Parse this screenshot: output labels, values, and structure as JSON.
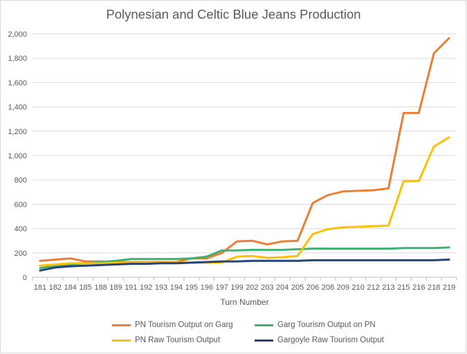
{
  "chart_data": {
    "type": "line",
    "title": "Polynesian and Celtic Blue Jeans Production",
    "xlabel": "Turn Number",
    "ylabel": "",
    "ylim": [
      0,
      2000
    ],
    "yticks": [
      0,
      200,
      400,
      600,
      800,
      1000,
      1200,
      1400,
      1600,
      1800,
      2000
    ],
    "ytick_labels": [
      "0",
      "200",
      "400",
      "600",
      "800",
      "1,000",
      "1,200",
      "1,400",
      "1,600",
      "1,800",
      "2,000"
    ],
    "grid": true,
    "legend_position": "bottom",
    "categories": [
      "181",
      "182",
      "184",
      "185",
      "188",
      "189",
      "191",
      "192",
      "193",
      "194",
      "195",
      "196",
      "197",
      "199",
      "202",
      "203",
      "204",
      "205",
      "206",
      "208",
      "209",
      "210",
      "212",
      "213",
      "215",
      "216",
      "218",
      "219"
    ],
    "series": [
      {
        "name": "PN Tourism Output on Garg",
        "color": "#ed7d31",
        "values": [
          135,
          145,
          155,
          130,
          130,
          125,
          125,
          125,
          125,
          125,
          155,
          155,
          200,
          295,
          300,
          270,
          295,
          300,
          610,
          675,
          705,
          710,
          715,
          730,
          1350,
          1350,
          1840,
          1965
        ]
      },
      {
        "name": "Garg Tourism Output on PN",
        "color": "#3cb371",
        "values": [
          75,
          95,
          105,
          115,
          125,
          135,
          150,
          150,
          150,
          150,
          155,
          170,
          220,
          220,
          225,
          225,
          225,
          230,
          235,
          235,
          235,
          235,
          235,
          235,
          240,
          240,
          240,
          245
        ]
      },
      {
        "name": "PN Raw Tourism Output",
        "color": "#ffc000",
        "values": [
          95,
          105,
          115,
          115,
          115,
          120,
          120,
          120,
          120,
          120,
          120,
          120,
          120,
          170,
          175,
          160,
          165,
          175,
          355,
          395,
          410,
          415,
          420,
          425,
          790,
          790,
          1075,
          1150
        ]
      },
      {
        "name": "Gargoyle Raw Tourism Output",
        "color": "#264478",
        "values": [
          55,
          80,
          90,
          95,
          100,
          105,
          110,
          110,
          115,
          115,
          120,
          125,
          130,
          130,
          135,
          135,
          135,
          135,
          140,
          140,
          140,
          140,
          140,
          140,
          140,
          140,
          140,
          145
        ]
      }
    ]
  }
}
